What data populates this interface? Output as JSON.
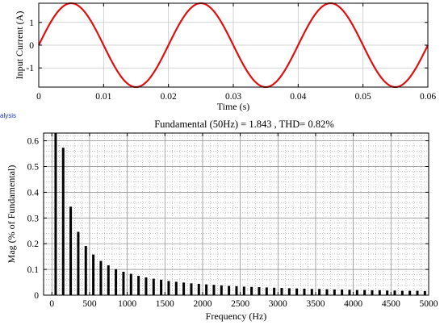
{
  "window_fragment": "alysis",
  "chart_data": [
    {
      "type": "line",
      "title": "",
      "xlabel": "Time (s)",
      "ylabel": "Input Current (A)",
      "xlim": [
        0,
        0.06
      ],
      "ylim": [
        -1.843,
        1.843
      ],
      "x_ticks": [
        "0",
        "0.01",
        "0.02",
        "0.03",
        "0.04",
        "0.05",
        "0.06"
      ],
      "y_ticks": [
        "1",
        "0",
        "-1"
      ],
      "grid": true,
      "series": [
        {
          "amplitude": 1.843,
          "frequency_hz": 50,
          "color": "#e01010"
        }
      ]
    },
    {
      "type": "bar",
      "title": "Fundamental (50Hz) = 1.843 , THD= 0.82%",
      "xlabel": "Frequency (Hz)",
      "ylabel": "Mag (% of Fundamental)",
      "xlim": [
        -110,
        5000
      ],
      "ylim": [
        0,
        0.63
      ],
      "x_ticks": [
        "0",
        "500",
        "1000",
        "1500",
        "2000",
        "2500",
        "3000",
        "3500",
        "4000",
        "4500",
        "5000"
      ],
      "y_ticks": [
        "0",
        "0.1",
        "0.2",
        "0.3",
        "0.4",
        "0.5",
        "0.6"
      ],
      "grid": true,
      "bar_color": "#000000",
      "x": [
        50,
        150,
        250,
        350,
        450,
        550,
        650,
        750,
        850,
        950,
        1050,
        1150,
        1250,
        1350,
        1450,
        1550,
        1650,
        1750,
        1850,
        1950,
        2050,
        2150,
        2250,
        2350,
        2450,
        2550,
        2650,
        2750,
        2850,
        2950,
        3050,
        3150,
        3250,
        3350,
        3450,
        3550,
        3650,
        3750,
        3850,
        3950,
        4050,
        4150,
        4250,
        4350,
        4450,
        4550,
        4650,
        4750,
        4850,
        4950
      ],
      "values": [
        0.63,
        0.573,
        0.344,
        0.246,
        0.191,
        0.158,
        0.133,
        0.116,
        0.101,
        0.091,
        0.083,
        0.075,
        0.069,
        0.064,
        0.06,
        0.055,
        0.052,
        0.049,
        0.046,
        0.044,
        0.042,
        0.04,
        0.038,
        0.036,
        0.035,
        0.033,
        0.032,
        0.031,
        0.03,
        0.029,
        0.028,
        0.027,
        0.026,
        0.025,
        0.024,
        0.024,
        0.023,
        0.022,
        0.022,
        0.021,
        0.02,
        0.02,
        0.019,
        0.019,
        0.018,
        0.018,
        0.017,
        0.017,
        0.017,
        0.016
      ]
    }
  ]
}
